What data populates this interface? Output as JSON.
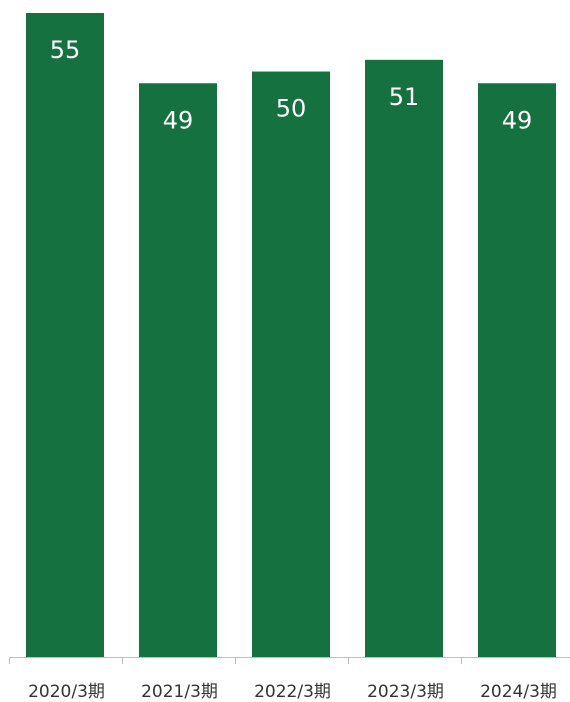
{
  "chart_data": {
    "type": "bar",
    "categories": [
      "2020/3期",
      "2021/3期",
      "2022/3期",
      "2023/3期",
      "2024/3期"
    ],
    "values": [
      55,
      49,
      50,
      51,
      49
    ],
    "data_labels": [
      "55",
      "49",
      "50",
      "51",
      "49"
    ],
    "ylim": [
      0,
      55
    ],
    "grid": false,
    "legend": "none",
    "colors": {
      "bar": "#157140",
      "label": "#ffffff",
      "axis": "#bfbfbf",
      "tick_text": "#333333"
    }
  }
}
